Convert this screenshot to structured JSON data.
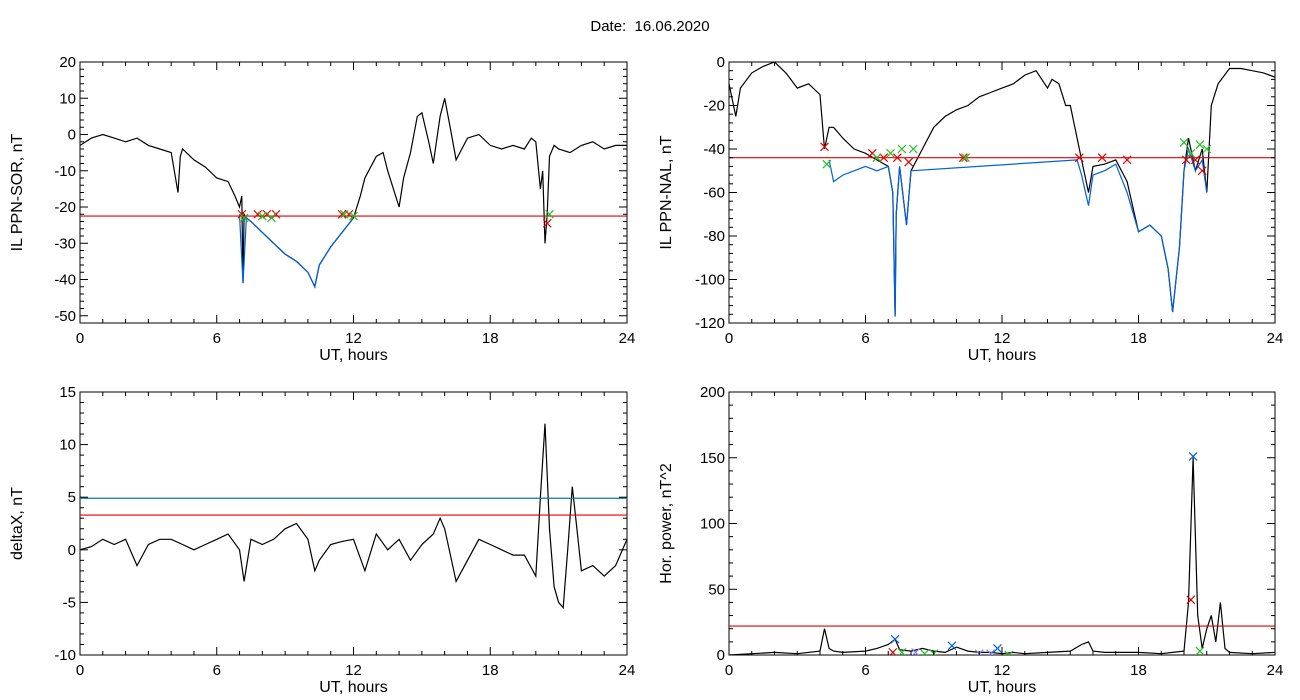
{
  "figure": {
    "title": "Date:  16.06.2020"
  },
  "chart_data": [
    {
      "type": "line",
      "xlabel": "UT, hours",
      "ylabel": "IL PPN-SOR, nT",
      "xlim": [
        0,
        24
      ],
      "ylim": [
        -52,
        20
      ],
      "xticks": [
        0,
        6,
        12,
        18,
        24
      ],
      "yticks": [
        -50,
        -40,
        -30,
        -20,
        -10,
        0,
        10,
        20
      ],
      "threshold": {
        "value": -22.5,
        "color": "#e00000"
      },
      "series": [
        {
          "color": "#000000",
          "x": [
            0,
            0.5,
            1,
            1.5,
            2,
            2.5,
            3,
            3.5,
            4,
            4.3,
            4.4,
            4.5,
            5,
            5.5,
            6,
            6.5,
            6.8,
            7,
            7.1,
            7.15,
            7.2,
            7.3,
            7.5,
            8,
            8.5,
            9,
            9.5,
            10,
            10.3,
            10.5,
            11,
            11.5,
            12,
            12.3,
            12.5,
            13,
            13.3,
            13.5,
            14,
            14.2,
            14.5,
            14.8,
            15,
            15.3,
            15.5,
            15.8,
            16,
            16.3,
            16.5,
            17,
            17.5,
            18,
            18.5,
            19,
            19.5,
            19.8,
            20,
            20.2,
            20.3,
            20.4,
            20.5,
            20.6,
            20.8,
            21,
            21.5,
            22,
            22.5,
            23,
            23.5,
            24
          ],
          "y": [
            -3,
            -1,
            0,
            -1,
            -2,
            -1,
            -3,
            -4,
            -5,
            -16,
            -6,
            -4,
            -7,
            -9,
            -12,
            -13,
            -17,
            -20,
            -17,
            -41,
            -22,
            -23,
            -24,
            -27,
            -30,
            -33,
            -35,
            -38,
            -42,
            -36,
            -31,
            -27,
            -23,
            -17,
            -12,
            -6,
            -5,
            -10,
            -20,
            -12,
            -5,
            5,
            6,
            -2,
            -8,
            5,
            10,
            0,
            -7,
            -1,
            0,
            -3,
            -4,
            -3,
            -4,
            -1,
            -2,
            -15,
            -10,
            -30,
            -22,
            -6,
            -3,
            -4,
            -5,
            -3,
            -2,
            -4,
            -3,
            -3
          ]
        },
        {
          "color": "#0060e0",
          "x": [
            7,
            7.15,
            7.3,
            7.5,
            8,
            8.5,
            9,
            9.5,
            10,
            10.3,
            10.5,
            11,
            11.5,
            12
          ],
          "y": [
            -22,
            -41,
            -23,
            -24,
            -27,
            -30,
            -33,
            -35,
            -38,
            -42,
            -36,
            -31,
            -27,
            -23
          ]
        }
      ],
      "markers": [
        {
          "color": "#e00000",
          "x": [
            7.1,
            7.8,
            8.2,
            8.6,
            11.5,
            11.8,
            20.5
          ],
          "y": [
            -22,
            -22,
            -22,
            -22,
            -22,
            -22,
            -24.5
          ]
        },
        {
          "color": "#20c020",
          "x": [
            7.2,
            8.0,
            8.4,
            11.6,
            12.0,
            20.6
          ],
          "y": [
            -23,
            -22.5,
            -23,
            -22,
            -22.5,
            -22
          ]
        }
      ]
    },
    {
      "type": "line",
      "xlabel": "UT, hours",
      "ylabel": "IL PPN-NAL, nT",
      "xlim": [
        0,
        24
      ],
      "ylim": [
        -120,
        0
      ],
      "xticks": [
        0,
        6,
        12,
        18,
        24
      ],
      "yticks": [
        -120,
        -100,
        -80,
        -60,
        -40,
        -20,
        0
      ],
      "threshold": {
        "value": -44,
        "color": "#e00000"
      },
      "series": [
        {
          "color": "#000000",
          "x": [
            0,
            0.3,
            0.5,
            1,
            1.5,
            2,
            2.5,
            3,
            3.5,
            4,
            4.2,
            4.4,
            4.6,
            5,
            5.5,
            6,
            6.5,
            7,
            7.2,
            7.3,
            7.35,
            7.5,
            7.8,
            8,
            8.5,
            9,
            9.5,
            10,
            10.5,
            11,
            11.5,
            12,
            12.5,
            13,
            13.5,
            14,
            14.2,
            14.5,
            14.8,
            15,
            15.3,
            15.5,
            15.8,
            16,
            16.5,
            17,
            17.5,
            18,
            18.5,
            19,
            19.3,
            19.5,
            19.8,
            20,
            20.2,
            20.5,
            20.8,
            21,
            21.2,
            21.5,
            22,
            22.5,
            23,
            23.5,
            24
          ],
          "y": [
            -10,
            -25,
            -12,
            -5,
            -2,
            0,
            -5,
            -12,
            -10,
            -15,
            -40,
            -30,
            -30,
            -35,
            -40,
            -42,
            -45,
            -48,
            -60,
            -117,
            -70,
            -48,
            -75,
            -50,
            -40,
            -30,
            -25,
            -22,
            -20,
            -16,
            -14,
            -12,
            -10,
            -6,
            -4,
            -12,
            -8,
            -10,
            -20,
            -20,
            -35,
            -45,
            -60,
            -48,
            -47,
            -45,
            -55,
            -78,
            -75,
            -80,
            -95,
            -115,
            -85,
            -50,
            -35,
            -50,
            -40,
            -60,
            -20,
            -10,
            -3,
            -3,
            -4,
            -5,
            -7
          ]
        },
        {
          "color": "#0060e0",
          "x": [
            4.4,
            4.6,
            5,
            5.5,
            6,
            6.5,
            7,
            7.2,
            7.3,
            7.35,
            7.5,
            7.8,
            8,
            15.3,
            15.5,
            15.8,
            16,
            16.5,
            17,
            17.5,
            18,
            18.5,
            19,
            19.3,
            19.5,
            19.8,
            20,
            20.2,
            20.5,
            20.8,
            21
          ],
          "y": [
            -45,
            -55,
            -52,
            -50,
            -48,
            -50,
            -48,
            -60,
            -117,
            -70,
            -48,
            -75,
            -50,
            -45,
            -52,
            -66,
            -52,
            -50,
            -47,
            -60,
            -78,
            -75,
            -80,
            -95,
            -115,
            -85,
            -50,
            -40,
            -50,
            -45,
            -60
          ]
        }
      ],
      "markers": [
        {
          "color": "#e00000",
          "x": [
            4.2,
            6.3,
            6.8,
            7.4,
            7.9,
            10.3,
            15.4,
            16.4,
            17.5,
            20.1,
            20.5,
            20.8
          ],
          "y": [
            -39,
            -42,
            -44,
            -44,
            -46,
            -44,
            -44,
            -44,
            -45,
            -45,
            -45,
            -50
          ]
        },
        {
          "color": "#20c020",
          "x": [
            4.3,
            6.5,
            7.1,
            7.6,
            8.1,
            10.4,
            20.0,
            20.3,
            20.7,
            21.0
          ],
          "y": [
            -47,
            -44,
            -42,
            -40,
            -40,
            -44,
            -37,
            -42,
            -38,
            -40
          ]
        }
      ]
    },
    {
      "type": "line",
      "xlabel": "UT, hours",
      "ylabel": "deltaX, nT",
      "xlim": [
        0,
        24
      ],
      "ylim": [
        -10,
        15
      ],
      "xticks": [
        0,
        6,
        12,
        18,
        24
      ],
      "yticks": [
        -10,
        -5,
        0,
        5,
        10,
        15
      ],
      "thresholds": [
        {
          "value": 4.9,
          "color": "#0080a0"
        },
        {
          "value": 3.3,
          "color": "#e00000"
        }
      ],
      "series": [
        {
          "color": "#000000",
          "x": [
            0,
            0.5,
            1,
            1.5,
            2,
            2.5,
            3,
            3.5,
            4,
            4.5,
            5,
            5.5,
            6,
            6.5,
            7,
            7.2,
            7.5,
            8,
            8.5,
            9,
            9.5,
            10,
            10.3,
            10.5,
            11,
            11.5,
            12,
            12.5,
            13,
            13.5,
            14,
            14.5,
            15,
            15.5,
            15.8,
            16,
            16.5,
            17,
            17.5,
            18,
            18.5,
            19,
            19.5,
            20,
            20.2,
            20.4,
            20.6,
            20.8,
            21,
            21.2,
            21.4,
            21.6,
            21.8,
            22,
            22.5,
            23,
            23.5,
            24
          ],
          "y": [
            0,
            0.3,
            1,
            0.5,
            1,
            -1.5,
            0.5,
            1,
            1,
            0.5,
            0,
            0.5,
            1,
            1.5,
            0,
            -3,
            1,
            0.5,
            1,
            2,
            2.5,
            1,
            -2,
            -1,
            0.5,
            0.8,
            1,
            -2,
            1.5,
            0,
            1,
            -1,
            0.5,
            1.5,
            3,
            2,
            -3,
            -1,
            1,
            0.5,
            0,
            -0.5,
            -0.5,
            -2.5,
            5,
            12,
            2,
            -3.5,
            -5,
            -5.5,
            0,
            6,
            2,
            -2,
            -1.5,
            -2.5,
            -1.5,
            1
          ]
        }
      ]
    },
    {
      "type": "line",
      "xlabel": "UT, hours",
      "ylabel": "Hor. power, nT^2",
      "xlim": [
        0,
        24
      ],
      "ylim": [
        0,
        200
      ],
      "xticks": [
        0,
        6,
        12,
        18,
        24
      ],
      "yticks": [
        0,
        50,
        100,
        150,
        200
      ],
      "threshold": {
        "value": 22,
        "color": "#e00000"
      },
      "series": [
        {
          "color": "#000000",
          "x": [
            0,
            1,
            2,
            3,
            4,
            4.2,
            4.4,
            4.6,
            5,
            6,
            6.5,
            7,
            7.3,
            7.5,
            8,
            8.5,
            9,
            9.5,
            10,
            10.5,
            11,
            11.5,
            12,
            12.5,
            13,
            14,
            15,
            15.5,
            15.8,
            16,
            16.5,
            17,
            18,
            19,
            19.5,
            20,
            20.2,
            20.4,
            20.6,
            20.8,
            21,
            21.2,
            21.4,
            21.6,
            21.8,
            22,
            23,
            24
          ],
          "y": [
            0,
            1,
            2,
            1,
            3,
            20,
            5,
            3,
            2,
            3,
            5,
            8,
            12,
            4,
            3,
            5,
            3,
            2,
            6,
            3,
            2,
            2,
            1,
            2,
            1,
            2,
            3,
            8,
            10,
            3,
            2,
            2,
            2,
            1,
            2,
            3,
            40,
            150,
            30,
            5,
            20,
            30,
            10,
            40,
            5,
            2,
            1,
            2
          ]
        }
      ],
      "markers": [
        {
          "color": "#0060e0",
          "x": [
            7.3,
            9.8,
            11.8,
            20.4
          ],
          "y": [
            12,
            7,
            5,
            151
          ]
        },
        {
          "color": "#e00000",
          "x": [
            7.2,
            20.3
          ],
          "y": [
            2,
            42
          ]
        },
        {
          "color": "#20c020",
          "x": [
            7.6,
            8.6,
            9.0,
            12.3,
            20.7
          ],
          "y": [
            2,
            1,
            1,
            0,
            3
          ]
        },
        {
          "color": "#8080ff",
          "x": [
            8.2,
            11.0,
            11.5
          ],
          "y": [
            2,
            1,
            1
          ]
        }
      ]
    }
  ]
}
